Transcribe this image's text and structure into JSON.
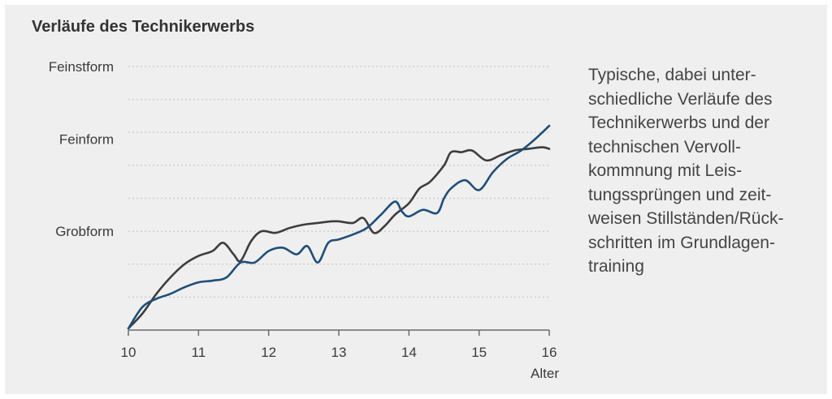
{
  "title": "Verläufe des Technikerwerbs",
  "caption_lines": [
    "Typische, dabei unter-",
    "schiedliche Verläufe des",
    "Technikerwerbs und der",
    "technischen Vervoll-",
    "kommnung mit Leis-",
    "tungssprüngen und zeit-",
    "weisen Stillständen/Rück-",
    "schritten im Grundlagen-",
    "training"
  ],
  "chart_data": {
    "type": "line",
    "title": "Verläufe des Technikerwerbs",
    "xlabel": "Alter",
    "ylabel": "",
    "xlim": [
      10,
      16
    ],
    "ylim": [
      0,
      8
    ],
    "x_ticks": [
      10,
      11,
      12,
      13,
      14,
      15,
      16
    ],
    "y_level_labels": [
      {
        "value": 8,
        "label": "Feinstform"
      },
      {
        "value": 5.8,
        "label": "Feinform"
      },
      {
        "value": 3.0,
        "label": "Grobform"
      }
    ],
    "grid": "dotted horizontal",
    "colors": {
      "series1": "#3d3d3d",
      "series2": "#1f4e79",
      "grid": "#c8c8c8"
    },
    "series": [
      {
        "x": [
          10.0,
          10.2,
          10.4,
          10.6,
          10.8,
          11.0,
          11.2,
          11.35,
          11.5,
          11.6,
          11.75,
          11.9,
          12.1,
          12.3,
          12.5,
          12.7,
          12.9,
          13.0,
          13.2,
          13.35,
          13.5,
          13.65,
          13.8,
          14.0,
          14.15,
          14.3,
          14.5,
          14.6,
          14.75,
          14.9,
          15.1,
          15.3,
          15.5,
          15.7,
          15.9,
          16.0
        ],
        "y": [
          0.05,
          0.5,
          1.1,
          1.6,
          2.0,
          2.25,
          2.4,
          2.65,
          2.3,
          2.1,
          2.7,
          3.0,
          2.95,
          3.1,
          3.2,
          3.25,
          3.3,
          3.3,
          3.25,
          3.4,
          2.95,
          3.15,
          3.5,
          3.85,
          4.3,
          4.5,
          5.0,
          5.4,
          5.4,
          5.45,
          5.15,
          5.3,
          5.45,
          5.5,
          5.55,
          5.5
        ]
      },
      {
        "x": [
          10.0,
          10.2,
          10.4,
          10.6,
          10.8,
          11.0,
          11.2,
          11.4,
          11.6,
          11.8,
          12.0,
          12.2,
          12.4,
          12.55,
          12.7,
          12.85,
          13.0,
          13.2,
          13.4,
          13.6,
          13.8,
          13.9,
          14.0,
          14.2,
          14.4,
          14.5,
          14.6,
          14.8,
          15.0,
          15.2,
          15.4,
          15.6,
          15.8,
          16.0
        ],
        "y": [
          0.05,
          0.7,
          0.95,
          1.1,
          1.3,
          1.45,
          1.5,
          1.6,
          2.05,
          2.05,
          2.4,
          2.5,
          2.3,
          2.55,
          2.05,
          2.65,
          2.75,
          2.9,
          3.1,
          3.5,
          3.9,
          3.6,
          3.45,
          3.65,
          3.55,
          4.0,
          4.3,
          4.55,
          4.25,
          4.8,
          5.2,
          5.45,
          5.8,
          6.2
        ]
      }
    ]
  }
}
